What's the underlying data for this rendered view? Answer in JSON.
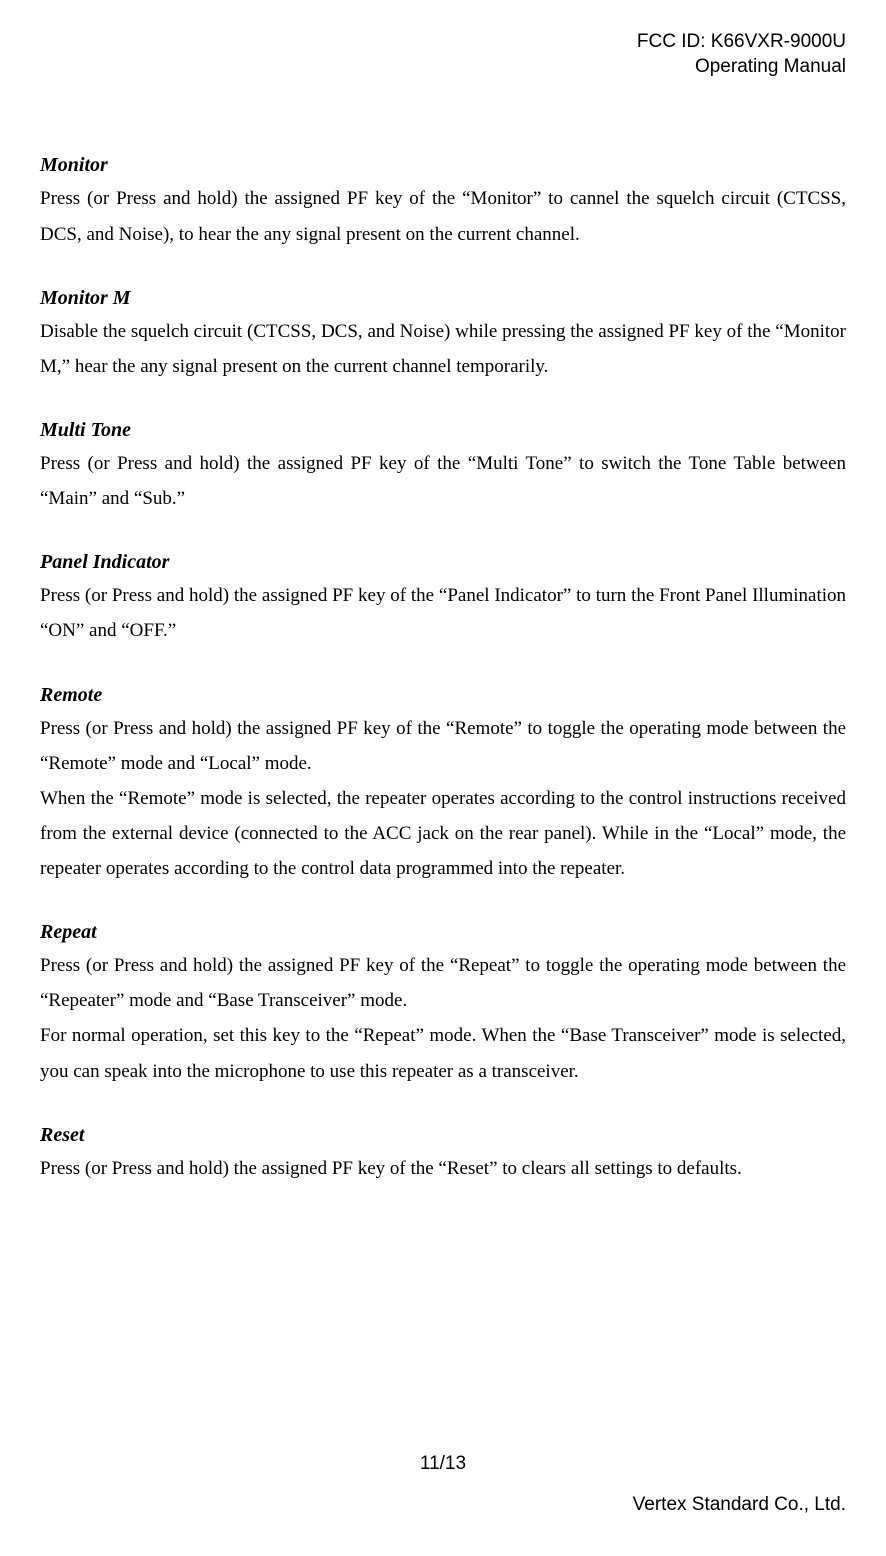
{
  "header": {
    "fcc_id": "FCC ID: K66VXR-9000U",
    "subtitle": "Operating Manual"
  },
  "sections": [
    {
      "heading": "Monitor",
      "paragraphs": [
        "Press (or Press and hold) the assigned PF key of the “Monitor” to cannel the squelch circuit (CTCSS, DCS, and Noise), to hear the any signal present on the current channel."
      ]
    },
    {
      "heading": "Monitor M",
      "paragraphs": [
        "Disable the squelch circuit (CTCSS, DCS, and Noise) while pressing the assigned PF key of the “Monitor M,” hear the any signal present on the current channel temporarily."
      ]
    },
    {
      "heading": "Multi Tone",
      "paragraphs": [
        "Press (or Press and hold) the assigned PF key of the “Multi Tone” to switch the Tone Table between “Main” and “Sub.”"
      ]
    },
    {
      "heading": "Panel Indicator",
      "paragraphs": [
        "Press (or Press and hold) the assigned PF key of the “Panel Indicator” to turn the Front Panel Illumination “ON” and “OFF.”"
      ]
    },
    {
      "heading": "Remote",
      "paragraphs": [
        "Press (or Press and hold) the assigned PF key of the “Remote” to toggle the operating mode between the “Remote” mode and “Local” mode.",
        "When the “Remote” mode is selected, the repeater operates according to the control instructions received from the external device (connected to the ACC jack on the rear panel). While in the “Local” mode, the repeater operates according to the control data programmed into the repeater."
      ]
    },
    {
      "heading": "Repeat",
      "paragraphs": [
        "Press (or Press and hold) the assigned PF key of the “Repeat” to toggle the operating mode between the “Repeater” mode and “Base Transceiver” mode.",
        "For normal operation, set this key to the “Repeat” mode. When the “Base Transceiver” mode is selected, you can speak into the microphone to use this repeater as a transceiver."
      ]
    },
    {
      "heading": "Reset",
      "paragraphs": [
        "Press (or Press and hold) the assigned PF key of the “Reset” to clears all settings to defaults."
      ]
    }
  ],
  "footer": {
    "page_number": "11/13",
    "company": "Vertex Standard Co., Ltd."
  }
}
